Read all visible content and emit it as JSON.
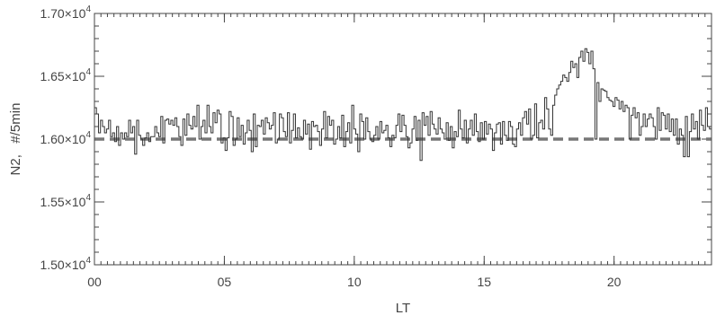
{
  "chart_data": {
    "type": "line",
    "title": "",
    "xlabel": "LT",
    "ylabel": "N2,   #/5min",
    "x_range": [
      0,
      23.75
    ],
    "ylim": [
      15000,
      17000
    ],
    "x_ticks": [
      0,
      5,
      10,
      15,
      20
    ],
    "x_tick_labels": [
      "00",
      "05",
      "10",
      "15",
      "20"
    ],
    "y_ticks": [
      15000,
      15500,
      16000,
      16500,
      17000
    ],
    "y_tick_labels": [
      {
        "mantissa": "1.50",
        "times": "×10",
        "exponent": "4"
      },
      {
        "mantissa": "1.55",
        "times": "×10",
        "exponent": "4"
      },
      {
        "mantissa": "1.60",
        "times": "×10",
        "exponent": "4"
      },
      {
        "mantissa": "1.65",
        "times": "×10",
        "exponent": "4"
      },
      {
        "mantissa": "1.70",
        "times": "×10",
        "exponent": "4"
      }
    ],
    "x_minor_step": 0.25,
    "y_minor_step": 100,
    "grid": false,
    "line_style": "histogram-step",
    "bin_width_hours": 0.0833,
    "reference_line": {
      "y": 16000,
      "style": "dashed",
      "color": "#777777"
    },
    "series": [
      {
        "color": "#333333",
        "values": [
          16250,
          16200,
          16050,
          16150,
          16100,
          16050,
          16080,
          16150,
          16020,
          16050,
          15980,
          16100,
          15950,
          16050,
          16000,
          16050,
          16020,
          16150,
          16050,
          16100,
          15880,
          16150,
          16030,
          16000,
          15950,
          16010,
          16050,
          15980,
          16020,
          16020,
          16100,
          16050,
          16020,
          16180,
          15970,
          16150,
          16160,
          16120,
          16150,
          16110,
          16170,
          16100,
          16020,
          15950,
          16160,
          16030,
          16200,
          16110,
          16080,
          16180,
          16100,
          16270,
          16000,
          16100,
          16150,
          16050,
          16270,
          16100,
          16050,
          16210,
          16130,
          16230,
          16200,
          15970,
          16010,
          15910,
          16010,
          16220,
          16180,
          15950,
          16000,
          16170,
          16020,
          16110,
          15960,
          16050,
          16150,
          16070,
          15900,
          16200,
          15940,
          16110,
          16100,
          16150,
          16040,
          16170,
          16130,
          16080,
          16110,
          16210,
          15970,
          16000,
          16200,
          16170,
          16060,
          16020,
          16210,
          15970,
          16070,
          16200,
          16010,
          16090,
          16020,
          16000,
          16150,
          16040,
          16120,
          15920,
          16140,
          16100,
          16110,
          16060,
          15950,
          16080,
          16220,
          16010,
          16180,
          16110,
          16150,
          15960,
          16000,
          16100,
          16010,
          16190,
          15940,
          16060,
          16130,
          15970,
          16270,
          16080,
          16040,
          15900,
          16200,
          16140,
          16000,
          16170,
          16060,
          16000,
          15980,
          16030,
          16100,
          16000,
          16140,
          16050,
          16070,
          16110,
          16010,
          15940,
          16030,
          16010,
          16110,
          16200,
          16060,
          16190,
          16110,
          16020,
          15930,
          15970,
          16080,
          16180,
          15990,
          16150,
          15830,
          16210,
          16110,
          16180,
          16030,
          16220,
          16120,
          16080,
          16040,
          16170,
          16080,
          16050,
          16000,
          16130,
          15990,
          16100,
          15930,
          16060,
          16020,
          16230,
          16080,
          16010,
          16150,
          15970,
          16080,
          16150,
          16030,
          16200,
          16060,
          15980,
          16130,
          16000,
          16140,
          16040,
          16120,
          16080,
          15910,
          16050,
          16120,
          16130,
          15960,
          16140,
          16030,
          15990,
          16140,
          16100,
          15960,
          15940,
          16080,
          16130,
          16030,
          16170,
          16220,
          16120,
          16240,
          16000,
          16030,
          16280,
          16010,
          16130,
          16150,
          16080,
          16330,
          16240,
          16080,
          16030,
          16270,
          16350,
          16400,
          16430,
          16460,
          16510,
          16490,
          16460,
          16530,
          16620,
          16570,
          16600,
          16490,
          16650,
          16700,
          16620,
          16720,
          16690,
          16600,
          16700,
          16560,
          16000,
          16450,
          16300,
          16400,
          16390,
          16380,
          16330,
          16310,
          16300,
          16260,
          16330,
          16310,
          16240,
          16300,
          16220,
          16270,
          16250,
          16000,
          16190,
          16250,
          16170,
          16210,
          16030,
          16100,
          16200,
          16100,
          16160,
          16200,
          16170,
          16100,
          16000,
          16250,
          16070,
          16210,
          16190,
          16080,
          16200,
          16060,
          16160,
          16030,
          16160,
          15960,
          16080,
          16030,
          15860,
          16180,
          15860,
          16060,
          16200,
          16080,
          16140,
          16000,
          16230,
          16110,
          16070,
          16250,
          16100,
          16080
        ]
      }
    ]
  }
}
